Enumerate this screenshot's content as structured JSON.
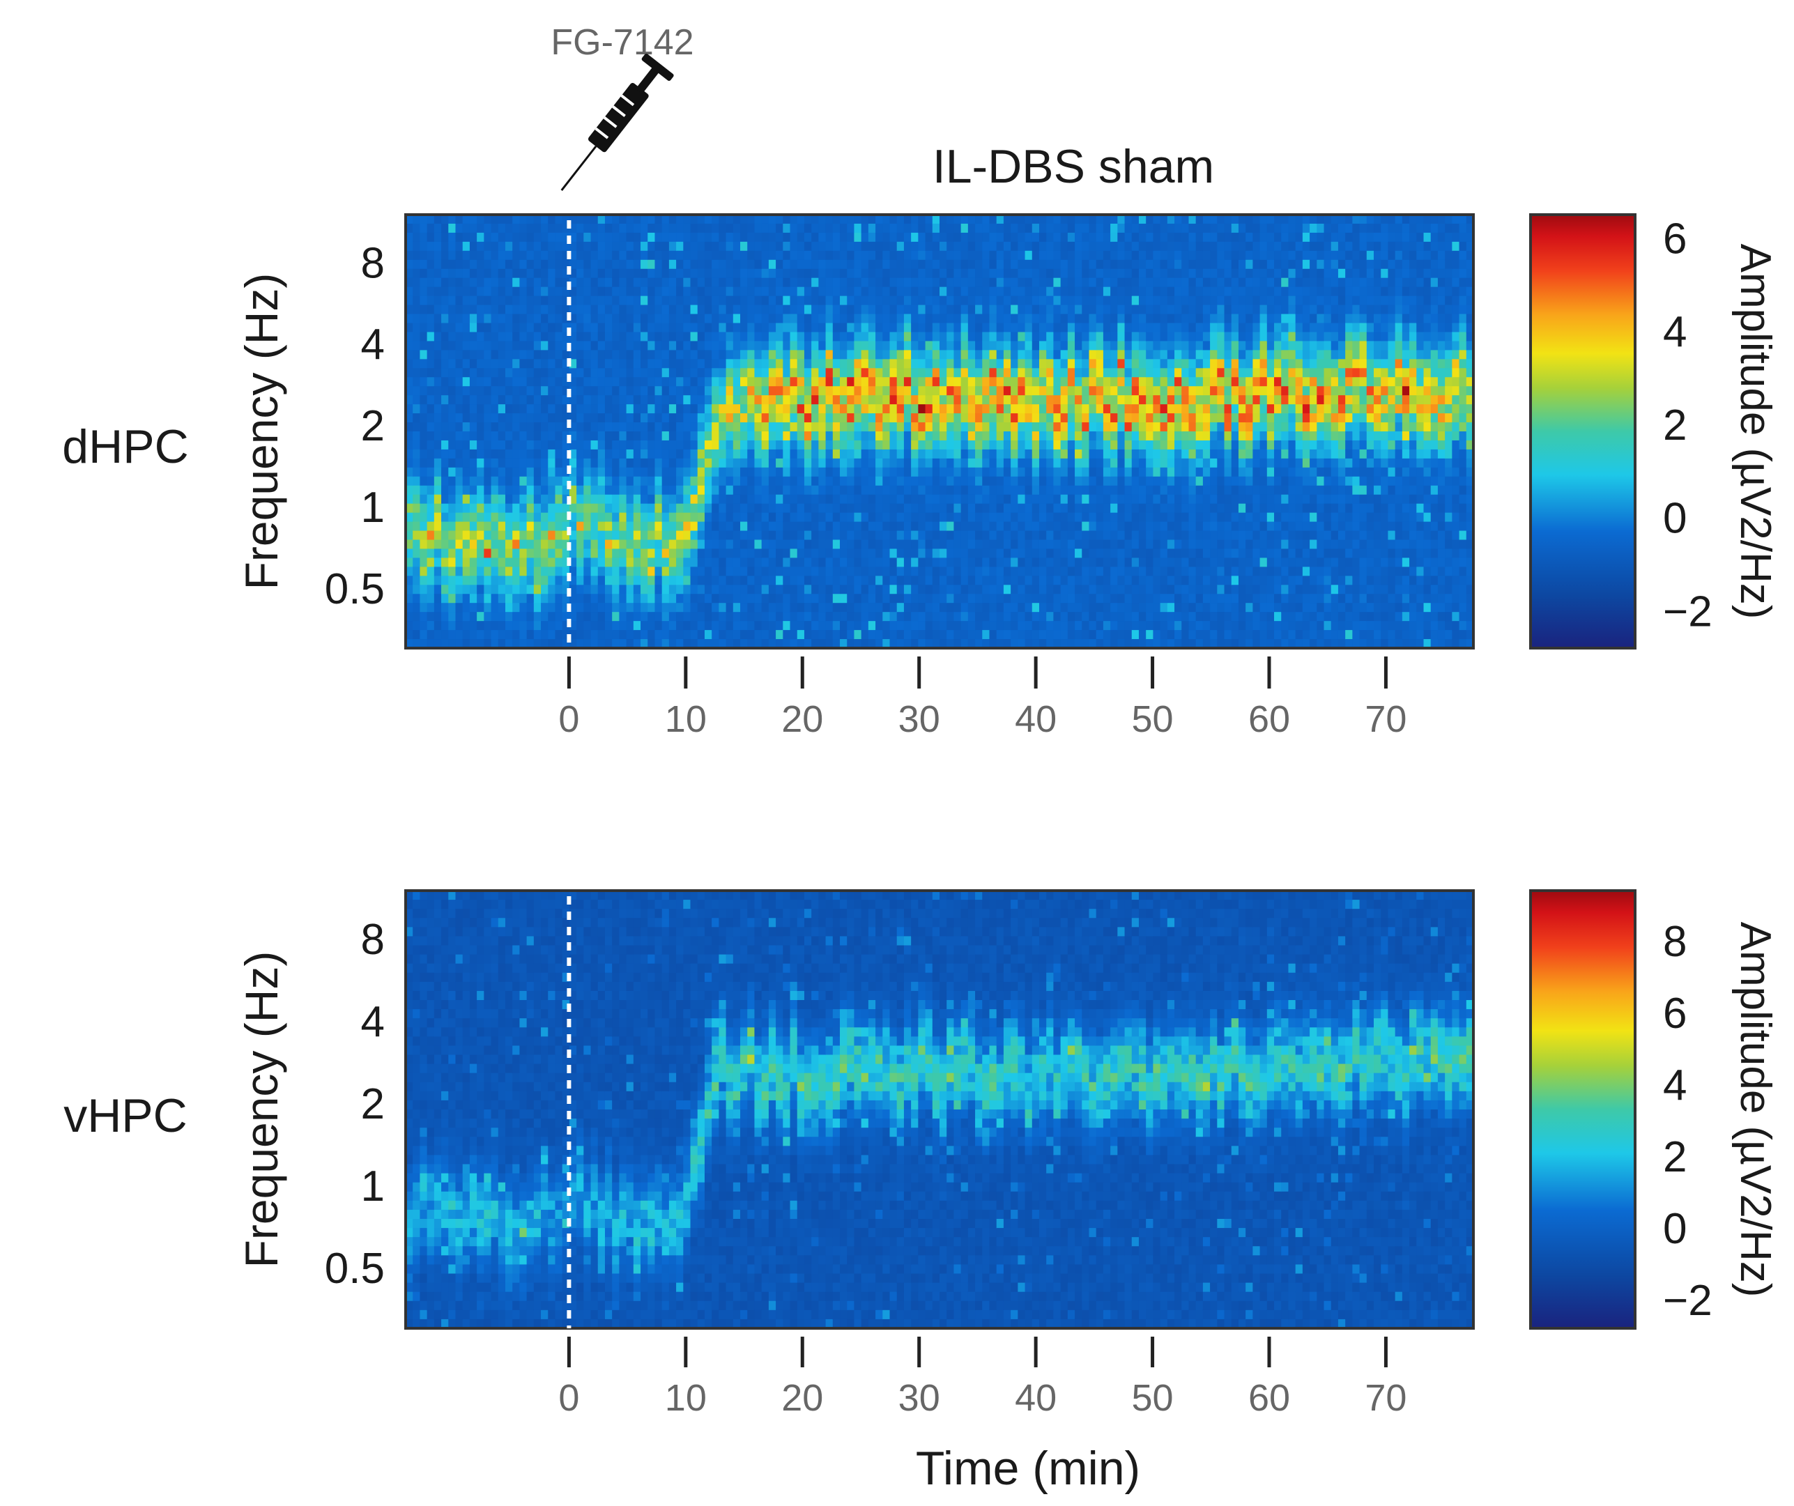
{
  "annotation": {
    "drug": "FG-7142",
    "icon": "syringe-icon"
  },
  "title": "IL-DBS sham",
  "x_label": "Time (min)",
  "chart_data": [
    {
      "type": "heatmap",
      "region": "dHPC",
      "title": "IL-DBS sham",
      "xlabel": "",
      "ylabel": "Frequency (Hz)",
      "x_ticks": [
        0,
        10,
        20,
        30,
        40,
        50,
        60,
        70
      ],
      "x_tick_labels": [
        "0",
        "10",
        "20",
        "30",
        "40",
        "50",
        "60",
        "70"
      ],
      "xlim": [
        -14,
        77.5
      ],
      "y_scale": "log2",
      "y_ticks": [
        0.5,
        1,
        2,
        4,
        8
      ],
      "y_tick_labels": [
        "0.5",
        "1",
        "2",
        "4",
        "8"
      ],
      "ylim": [
        0.3,
        12
      ],
      "event_marker_x": 0,
      "colorbar": {
        "label": "Amplitude (µV2/Hz)",
        "ticks": [
          -2,
          0,
          2,
          4,
          6
        ],
        "tick_labels": [
          "−2",
          "0",
          "2",
          "4",
          "6"
        ],
        "range": [
          -2.8,
          6.5
        ]
      },
      "band_profile": [
        {
          "t": -14,
          "hz": 0.8,
          "amp": 3.2
        },
        {
          "t": -8,
          "hz": 0.72,
          "amp": 3.6
        },
        {
          "t": -2,
          "hz": 0.75,
          "amp": 3.4
        },
        {
          "t": 0,
          "hz": 0.9,
          "amp": 2.8
        },
        {
          "t": 5,
          "hz": 0.7,
          "amp": 3.4
        },
        {
          "t": 10,
          "hz": 0.75,
          "amp": 3.6
        },
        {
          "t": 14,
          "hz": 2.4,
          "amp": 4.2
        },
        {
          "t": 20,
          "hz": 2.5,
          "amp": 5.0
        },
        {
          "t": 30,
          "hz": 2.6,
          "amp": 5.2
        },
        {
          "t": 40,
          "hz": 2.5,
          "amp": 5.0
        },
        {
          "t": 50,
          "hz": 2.5,
          "amp": 5.0
        },
        {
          "t": 60,
          "hz": 2.6,
          "amp": 5.2
        },
        {
          "t": 70,
          "hz": 2.7,
          "amp": 4.8
        },
        {
          "t": 77.5,
          "hz": 2.7,
          "amp": 4.6
        }
      ]
    },
    {
      "type": "heatmap",
      "region": "vHPC",
      "xlabel": "Time (min)",
      "ylabel": "Frequency (Hz)",
      "x_ticks": [
        0,
        10,
        20,
        30,
        40,
        50,
        60,
        70
      ],
      "x_tick_labels": [
        "0",
        "10",
        "20",
        "30",
        "40",
        "50",
        "60",
        "70"
      ],
      "xlim": [
        -14,
        77.5
      ],
      "y_scale": "log2",
      "y_ticks": [
        0.5,
        1,
        2,
        4,
        8
      ],
      "y_tick_labels": [
        "0.5",
        "1",
        "2",
        "4",
        "8"
      ],
      "ylim": [
        0.3,
        12
      ],
      "event_marker_x": 0,
      "colorbar": {
        "label": "Amplitude (µV2/Hz)",
        "ticks": [
          -2,
          0,
          2,
          4,
          6,
          8
        ],
        "tick_labels": [
          "−2",
          "0",
          "2",
          "4",
          "6",
          "8"
        ],
        "range": [
          -2.8,
          9.4
        ]
      },
      "band_profile": [
        {
          "t": -14,
          "hz": 0.8,
          "amp": 2.6
        },
        {
          "t": -8,
          "hz": 0.7,
          "amp": 2.8
        },
        {
          "t": -2,
          "hz": 0.75,
          "amp": 2.6
        },
        {
          "t": 0,
          "hz": 0.9,
          "amp": 2.2
        },
        {
          "t": 5,
          "hz": 0.7,
          "amp": 2.8
        },
        {
          "t": 10,
          "hz": 0.75,
          "amp": 3.0
        },
        {
          "t": 13,
          "hz": 2.7,
          "amp": 3.6
        },
        {
          "t": 20,
          "hz": 2.6,
          "amp": 3.8
        },
        {
          "t": 30,
          "hz": 2.6,
          "amp": 3.8
        },
        {
          "t": 40,
          "hz": 2.5,
          "amp": 3.6
        },
        {
          "t": 50,
          "hz": 2.6,
          "amp": 3.8
        },
        {
          "t": 60,
          "hz": 2.6,
          "amp": 3.6
        },
        {
          "t": 70,
          "hz": 2.8,
          "amp": 3.8
        },
        {
          "t": 77.5,
          "hz": 2.7,
          "amp": 3.8
        }
      ]
    }
  ]
}
